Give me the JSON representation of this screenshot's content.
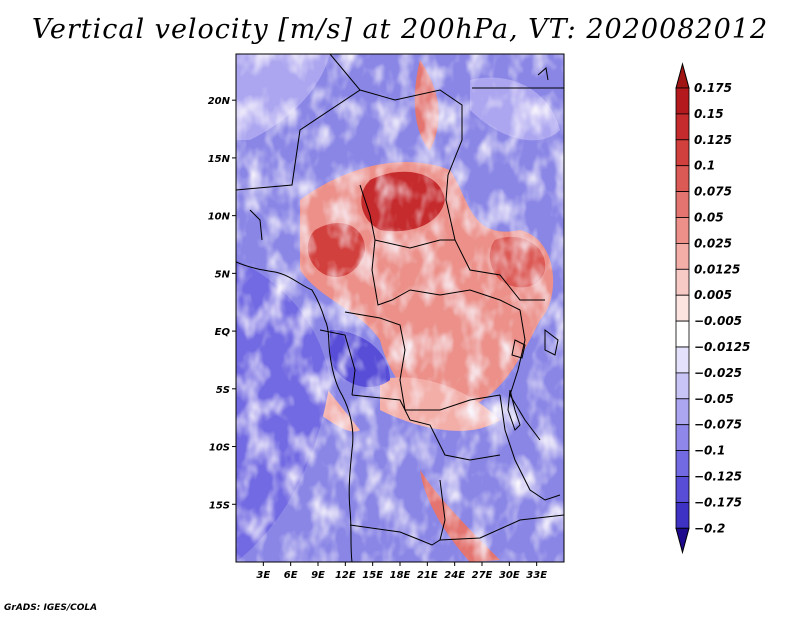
{
  "title": "Vertical velocity [m/s] at 200hPa, VT: 2020082012",
  "credit": "GrADS: IGES/COLA",
  "map": {
    "variable": "Vertical velocity",
    "units": "m/s",
    "level": "200hPa",
    "valid_time": "2020082012",
    "lon_range": [
      0,
      36
    ],
    "lat_range": [
      -20,
      24
    ],
    "lon_ticks": [
      {
        "value": 3,
        "label": "3E"
      },
      {
        "value": 6,
        "label": "6E"
      },
      {
        "value": 9,
        "label": "9E"
      },
      {
        "value": 12,
        "label": "12E"
      },
      {
        "value": 15,
        "label": "15E"
      },
      {
        "value": 18,
        "label": "18E"
      },
      {
        "value": 21,
        "label": "21E"
      },
      {
        "value": 24,
        "label": "24E"
      },
      {
        "value": 27,
        "label": "27E"
      },
      {
        "value": 30,
        "label": "30E"
      },
      {
        "value": 33,
        "label": "33E"
      }
    ],
    "lat_ticks": [
      {
        "value": 20,
        "label": "20N"
      },
      {
        "value": 15,
        "label": "15N"
      },
      {
        "value": 10,
        "label": "10N"
      },
      {
        "value": 5,
        "label": "5N"
      },
      {
        "value": 0,
        "label": "EQ"
      },
      {
        "value": -5,
        "label": "5S"
      },
      {
        "value": -10,
        "label": "10S"
      },
      {
        "value": -15,
        "label": "15S"
      }
    ]
  },
  "colorbar": {
    "max_arrow_color": "#a01414",
    "min_arrow_color": "#1e0a8c",
    "levels": [
      {
        "label": "0.175",
        "color": "#b4191e"
      },
      {
        "label": "0.15",
        "color": "#c52a2c"
      },
      {
        "label": "0.125",
        "color": "#d2403d"
      },
      {
        "label": "0.1",
        "color": "#dc5a55"
      },
      {
        "label": "0.075",
        "color": "#e4746f"
      },
      {
        "label": "0.05",
        "color": "#ec9089"
      },
      {
        "label": "0.025",
        "color": "#f3aea8"
      },
      {
        "label": "0.0125",
        "color": "#f8cac6"
      },
      {
        "label": "0.005",
        "color": "#fce4e1"
      },
      {
        "label": "-0.005",
        "color": "#ffffff"
      },
      {
        "label": "-0.0125",
        "color": "#e3e1fb"
      },
      {
        "label": "-0.025",
        "color": "#c8c4f6"
      },
      {
        "label": "-0.05",
        "color": "#aca6f0"
      },
      {
        "label": "-0.075",
        "color": "#8f88ea"
      },
      {
        "label": "-0.1",
        "color": "#726ae2"
      },
      {
        "label": "-0.125",
        "color": "#574dd7"
      },
      {
        "label": "-0.175",
        "color": "#3d32c4"
      },
      {
        "label": "-0.2",
        "color": "#2a1ea8"
      }
    ]
  }
}
